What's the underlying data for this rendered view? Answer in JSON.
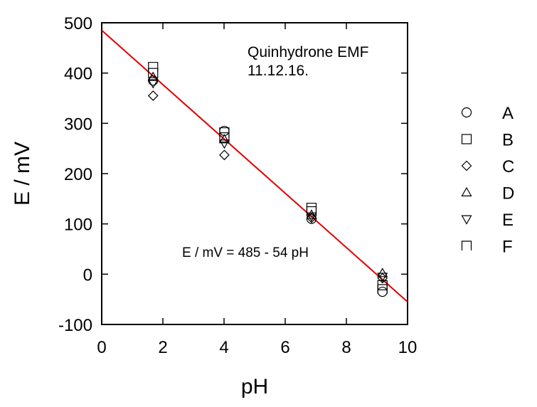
{
  "chart_data": {
    "type": "scatter",
    "xlabel": "pH",
    "ylabel": "E / mV",
    "xlim": [
      0,
      10
    ],
    "ylim": [
      -100,
      500
    ],
    "xticks": [
      0,
      2,
      4,
      6,
      8,
      10
    ],
    "yticks": [
      -100,
      0,
      100,
      200,
      300,
      400,
      500
    ],
    "annotations": {
      "title_line1": "Quinhydrone EMF",
      "title_line2": "11.12.16.",
      "equation": "E / mV = 485 - 54 pH"
    },
    "fit_line": {
      "intercept": 485,
      "slope": -54,
      "color": "#e00000"
    },
    "legend_position": "right",
    "series": [
      {
        "name": "A",
        "marker": "circle",
        "x": [
          1.68,
          4.01,
          6.86,
          9.18
        ],
        "y": [
          385,
          285,
          110,
          -35
        ]
      },
      {
        "name": "B",
        "marker": "square",
        "x": [
          1.68,
          4.01,
          6.86,
          9.18
        ],
        "y": [
          400,
          272,
          125,
          -22
        ]
      },
      {
        "name": "C",
        "marker": "diamond",
        "x": [
          1.68,
          4.01,
          6.86,
          9.18
        ],
        "y": [
          355,
          237,
          112,
          -8
        ]
      },
      {
        "name": "D",
        "marker": "triangle-up",
        "x": [
          1.68,
          4.01,
          6.86,
          9.18
        ],
        "y": [
          392,
          268,
          118,
          2
        ]
      },
      {
        "name": "E",
        "marker": "triangle-down",
        "x": [
          1.68,
          4.01,
          6.86,
          9.18
        ],
        "y": [
          380,
          260,
          115,
          -5
        ]
      },
      {
        "name": "F",
        "marker": "open-square",
        "x": [
          1.68,
          4.01,
          6.86,
          9.18
        ],
        "y": [
          412,
          282,
          132,
          -30
        ]
      }
    ]
  }
}
